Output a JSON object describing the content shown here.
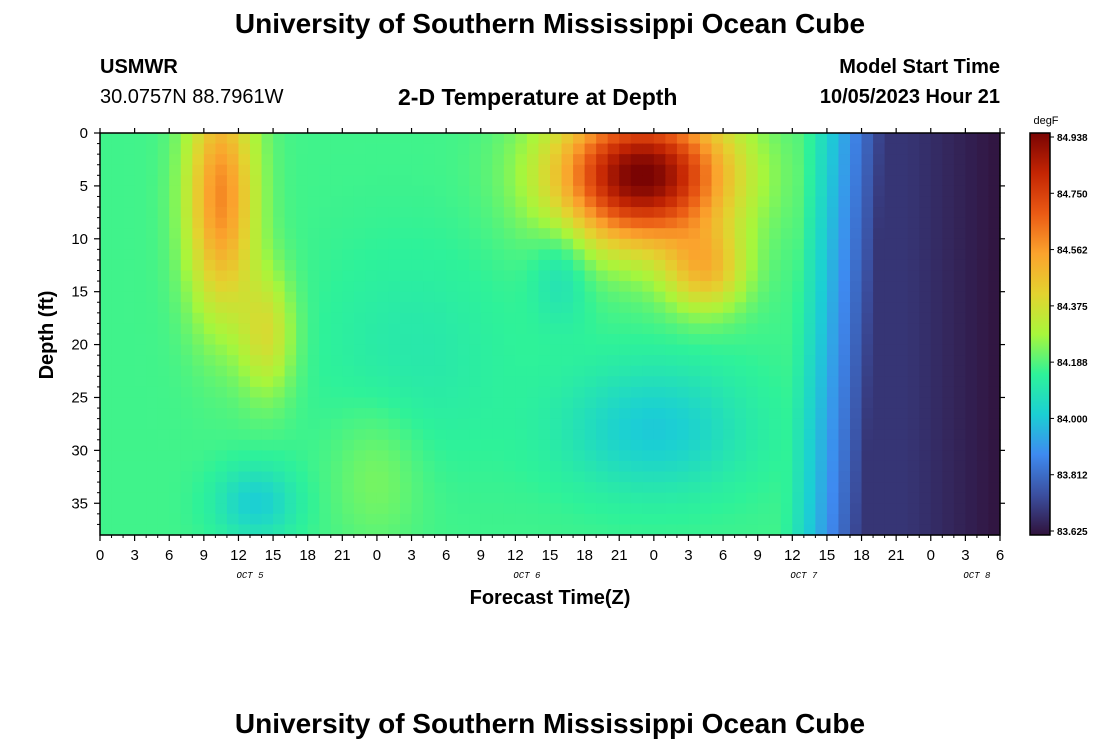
{
  "page": {
    "title": "University of Southern Mississippi Ocean Cube",
    "footer_title": "University of Southern Mississippi Ocean Cube",
    "station": "USMWR",
    "coordinates": "30.0757N  88.7961W",
    "plot_title": "2-D Temperature at Depth",
    "model_start_label": "Model Start Time",
    "model_start_value": "10/05/2023 Hour 21"
  },
  "chart_data": {
    "type": "heatmap",
    "title": "2-D Temperature at Depth",
    "xlabel": "Forecast Time(Z)",
    "ylabel": "Depth (ft)",
    "x_ticks": [
      "0",
      "3",
      "6",
      "9",
      "12",
      "15",
      "18",
      "21",
      "0",
      "3",
      "6",
      "9",
      "12",
      "15",
      "18",
      "21",
      "0",
      "3",
      "6",
      "9",
      "12",
      "15",
      "18",
      "21",
      "0",
      "3",
      "6"
    ],
    "x_range_hours": [
      0,
      78
    ],
    "date_labels": [
      {
        "label": "OCT 5",
        "hour": 13
      },
      {
        "label": "OCT 6",
        "hour": 37
      },
      {
        "label": "OCT 7",
        "hour": 61
      },
      {
        "label": "OCT 8",
        "hour": 76
      }
    ],
    "y_ticks": [
      0,
      5,
      10,
      15,
      20,
      25,
      30,
      35
    ],
    "ylim": [
      0,
      38
    ],
    "y_inverted": true,
    "colorbar": {
      "unit": "degF",
      "min": 83.625,
      "max": 84.938,
      "tick_labels": [
        "84.938",
        "84.750",
        "84.562",
        "84.375",
        "84.188",
        "84.000",
        "83.812",
        "83.625"
      ],
      "colormap": [
        "#30123b",
        "#3b4fa0",
        "#3e8af0",
        "#1bcfd4",
        "#2ef299",
        "#a8f63b",
        "#e3d32f",
        "#fba32d",
        "#ea5a14",
        "#c42503",
        "#7a0403"
      ]
    },
    "features": [
      {
        "description": "warm core",
        "hour_range": [
          6,
          18
        ],
        "depth_range": [
          0,
          25
        ],
        "peak_degF": 84.6
      },
      {
        "description": "warm core",
        "hour_range": [
          37,
          57
        ],
        "depth_range": [
          0,
          17
        ],
        "peak_degF": 84.94
      },
      {
        "description": "cool pocket",
        "hour_range": [
          11,
          17
        ],
        "depth_range": [
          30,
          38
        ],
        "min_degF": 84.02
      },
      {
        "description": "cool pocket",
        "hour_range": [
          42,
          56
        ],
        "depth_range": [
          25,
          33
        ],
        "min_degF": 83.98
      },
      {
        "description": "cold water",
        "hour_range": [
          62,
          78
        ],
        "depth_range": [
          0,
          38
        ],
        "min_degF": 83.62
      }
    ]
  }
}
